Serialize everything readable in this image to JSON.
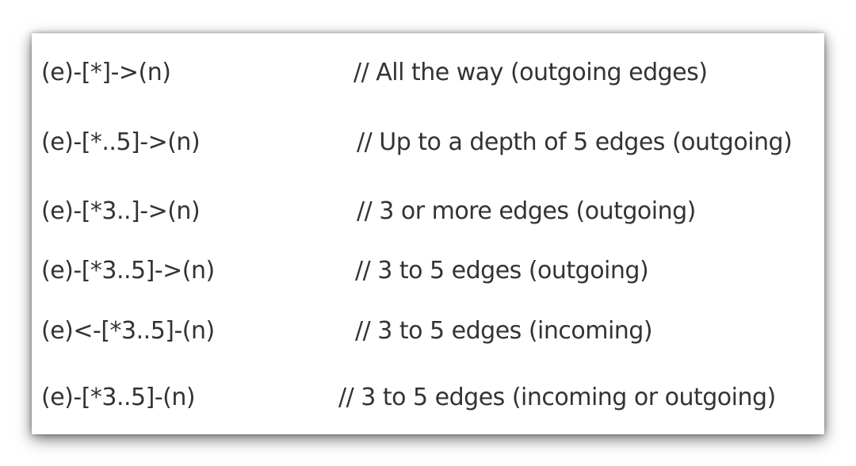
{
  "rows": [
    {
      "pattern": "(e)-[*]->(n)",
      "comment": "// All the way (outgoing edges)"
    },
    {
      "pattern": "(e)-[*..5]->(n)",
      "comment": "// Up to a depth of 5 edges (outgoing)"
    },
    {
      "pattern": "(e)-[*3..]->(n)",
      "comment": "// 3 or more edges (outgoing)"
    },
    {
      "pattern": "(e)-[*3..5]->(n)",
      "comment": "// 3 to 5 edges (outgoing)"
    },
    {
      "pattern": "(e)<-[*3..5]-(n)",
      "comment": "// 3 to 5 edges (incoming)"
    },
    {
      "pattern": "(e)-[*3..5]-(n)",
      "comment": "// 3 to 5 edges (incoming or outgoing)"
    }
  ],
  "colors": {
    "text": "#333333",
    "background": "#ffffff"
  }
}
